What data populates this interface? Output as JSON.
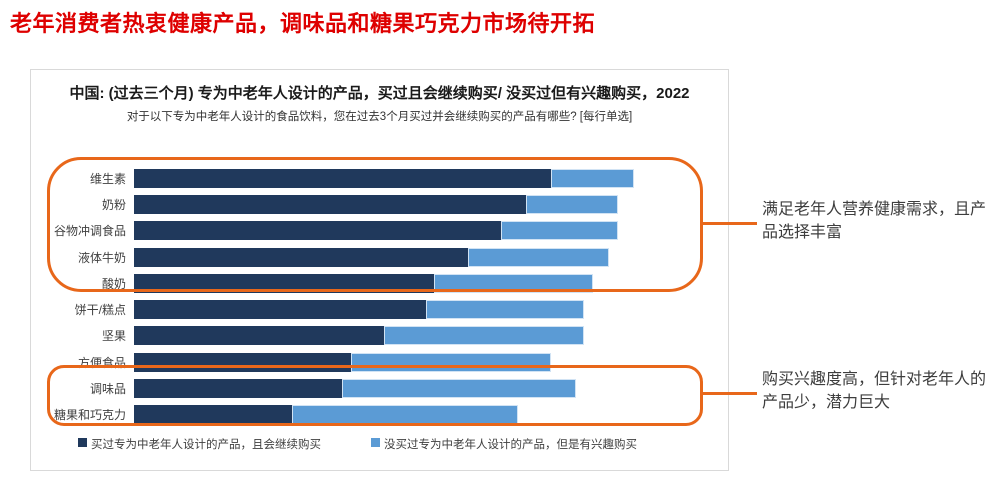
{
  "page_title": "老年消费者热衷健康产品，调味品和糖果巧克力市场待开拓",
  "colors": {
    "title_red": "#DE0000",
    "dark_blue": "#20395C",
    "light_blue": "#5B9BD5",
    "orange": "#E8671A",
    "card_border": "#D9D9D9"
  },
  "chart": {
    "title": "中国: (过去三个月) 专为中老年人设计的产品，买过且会继续购买/ 没买过但有兴趣购买，2022",
    "subtitle": "对于以下专为中老年人设计的食品饮料，您在过去3个月买过并会继续购买的产品有哪些? [每行单选]"
  },
  "chart_data": {
    "type": "bar",
    "orientation": "horizontal",
    "stacked": true,
    "title": "中国: (过去三个月) 专为中老年人设计的产品，买过且会继续购买/ 没买过但有兴趣购买，2022",
    "subtitle": "对于以下专为中老年人设计的食品饮料，您在过去3个月买过并会继续购买的产品有哪些? [每行单选]",
    "categories": [
      "维生素",
      "奶粉",
      "谷物冲调食品",
      "液体牛奶",
      "酸奶",
      "饼干/糕点",
      "坚果",
      "方便食品",
      "调味品",
      "糖果和巧克力"
    ],
    "series": [
      {
        "name": "买过专为中老年人设计的产品，且会继续购买",
        "color": "#20395C",
        "values": [
          50,
          47,
          44,
          40,
          36,
          35,
          30,
          26,
          25,
          19
        ]
      },
      {
        "name": "没买过专为中老年人设计的产品，但是有兴趣购买",
        "color": "#5B9BD5",
        "values": [
          10,
          11,
          14,
          17,
          19,
          19,
          24,
          24,
          28,
          27
        ]
      }
    ],
    "xlim": [
      0,
      68
    ],
    "value_unit": "percent (estimated, axis not labeled)",
    "grid": false,
    "axis_tick_labels_visible": false,
    "legend_position": "bottom"
  },
  "annotations": [
    {
      "rows_circled": "维生素–酸奶",
      "text": "满足老年人营养健康需求，且产品选择丰富"
    },
    {
      "rows_circled": "调味品–糖果和巧克力",
      "text": "购买兴趣度高，但针对老年人的产品少，潜力巨大"
    }
  ]
}
